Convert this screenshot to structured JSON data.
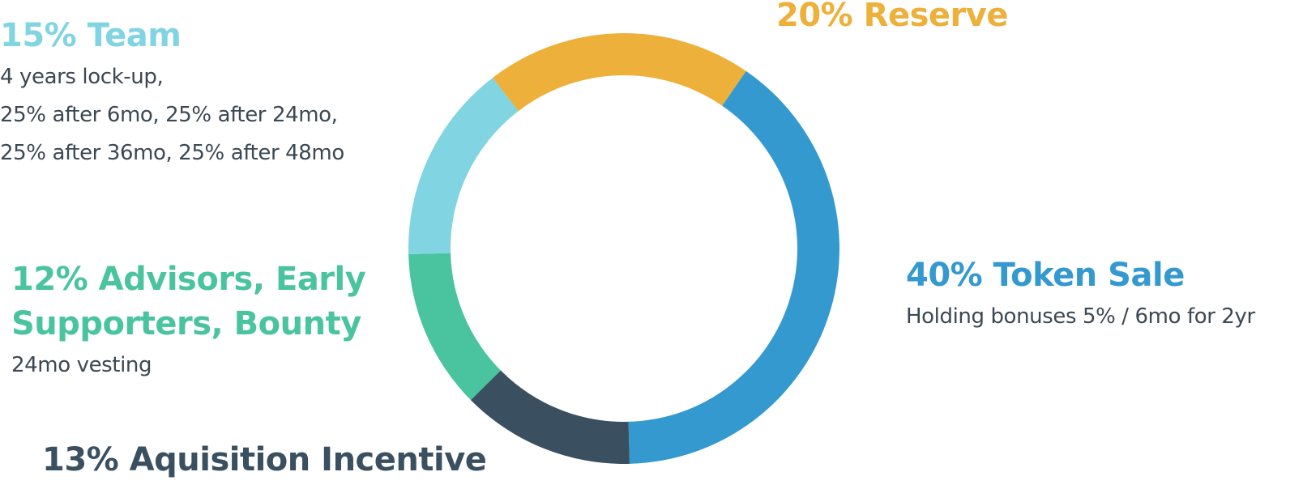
{
  "chart_data": {
    "type": "pie",
    "donut": true,
    "slices": [
      {
        "label": "Token Sale",
        "value": 40,
        "color": "#3499cf",
        "heading": "40% Token Sale",
        "description": [
          "Holding bonuses 5% / 6mo for 2yr"
        ]
      },
      {
        "label": "Aquisition Incentive",
        "value": 13,
        "color": "#3a5060",
        "heading": "13% Aquisition Incentive",
        "description": []
      },
      {
        "label": "Advisors, Early Supporters, Bounty",
        "value": 12,
        "color": "#4ac49f",
        "heading_lines": [
          "12% Advisors, Early",
          "Supporters, Bounty"
        ],
        "description": [
          "24mo vesting"
        ]
      },
      {
        "label": "Team",
        "value": 15,
        "color": "#81d4e2",
        "heading": "15% Team",
        "description": [
          "4 years lock-up,",
          "25% after 6mo, 25% after 24mo,",
          "25% after 36mo, 25% after 48mo"
        ]
      },
      {
        "label": "Reserve",
        "value": 20,
        "color": "#edb03a",
        "heading": "20% Reserve",
        "description": []
      }
    ]
  },
  "colors": {
    "token_sale": "#3499cf",
    "aquisition": "#3a5060",
    "advisors": "#4ac49f",
    "team": "#81d4e2",
    "reserve": "#edb03a",
    "description_text": "#3c4853"
  }
}
